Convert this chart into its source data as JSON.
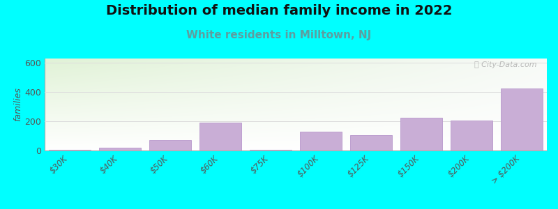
{
  "title": "Distribution of median family income in 2022",
  "subtitle": "White residents in Milltown, NJ",
  "categories": [
    "$30K",
    "$40K",
    "$50K",
    "$60K",
    "$75K",
    "$100K",
    "$125K",
    "$150K",
    "$200K",
    "> $200K"
  ],
  "values": [
    5,
    20,
    70,
    190,
    5,
    130,
    105,
    225,
    205,
    425
  ],
  "bar_color": "#c9aed6",
  "bar_edge_color": "#b898cc",
  "title_fontsize": 14,
  "subtitle_fontsize": 11,
  "subtitle_color": "#5d9ea0",
  "ylabel": "families",
  "ylim": [
    0,
    630
  ],
  "yticks": [
    0,
    200,
    400,
    600
  ],
  "background_color": "#00ffff",
  "watermark_text": "ⓘ City-Data.com",
  "grid_color": "#dddddd",
  "title_color": "#111111"
}
